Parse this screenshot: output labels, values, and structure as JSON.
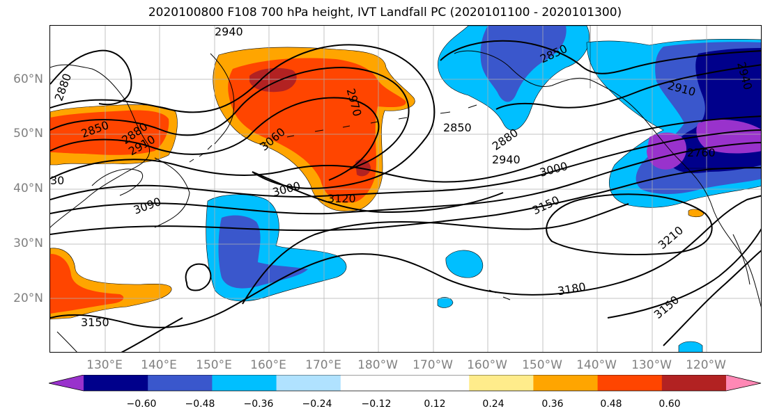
{
  "title": "2020100800 F108 700 hPa height, IVT Landfall PC (2020101100 - 2020101300)",
  "map": {
    "projection": "PlateCarree",
    "lat_labels": [
      "60°N",
      "50°N",
      "40°N",
      "30°N",
      "20°N"
    ],
    "lon_labels": [
      "130°E",
      "140°E",
      "150°E",
      "160°E",
      "170°E",
      "180°W",
      "170°W",
      "160°W",
      "150°W",
      "140°W",
      "130°W",
      "120°W"
    ],
    "gridlines": true,
    "coastlines": true
  },
  "contours": {
    "field": "700 hPa height",
    "labels": [
      {
        "text": "2940"
      },
      {
        "text": "2880"
      },
      {
        "text": "2850"
      },
      {
        "text": "2880"
      },
      {
        "text": "2910"
      },
      {
        "text": "3060"
      },
      {
        "text": "2970"
      },
      {
        "text": "3000"
      },
      {
        "text": "3120"
      },
      {
        "text": "3090"
      },
      {
        "text": "30"
      },
      {
        "text": "2850"
      },
      {
        "text": "2880"
      },
      {
        "text": "2850"
      },
      {
        "text": "2940"
      },
      {
        "text": "3000"
      },
      {
        "text": "3150"
      },
      {
        "text": "2910"
      },
      {
        "text": "2940"
      },
      {
        "text": "2760"
      },
      {
        "text": "3210"
      },
      {
        "text": "3180"
      },
      {
        "text": "3150"
      },
      {
        "text": "3150"
      }
    ]
  },
  "colorbar": {
    "field": "IVT Landfall PC",
    "colors": [
      "#9932CC",
      "#00008B",
      "#3A57CC",
      "#00BFFF",
      "#B0E2FF",
      "#FFFFFF",
      "#FFFFFF",
      "#FFEC8B",
      "#FFA500",
      "#FF4500",
      "#B22222",
      "#FF88B5"
    ],
    "tick_labels": [
      "−0.60",
      "−0.48",
      "−0.36",
      "−0.24",
      "−0.12",
      "0.12",
      "0.24",
      "0.36",
      "0.48",
      "0.60"
    ],
    "extend": "both"
  }
}
